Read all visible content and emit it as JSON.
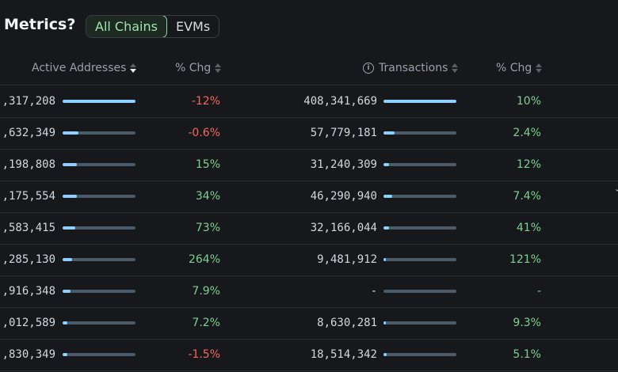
{
  "header": {
    "title": "y Metrics?",
    "tabs": [
      {
        "label": "All Chains",
        "active": true
      },
      {
        "label": "EVMs",
        "active": false
      }
    ]
  },
  "columns": {
    "active_addresses": "Active Addresses",
    "pct_chg_1": "% Chg",
    "transactions": "Transactions",
    "pct_chg_2": "% Chg"
  },
  "colors": {
    "positive": "#7fd08e",
    "negative": "#f2685c",
    "bar_fill": "#8fd0ff",
    "bar_track": "#4a5a68"
  },
  "rows": [
    {
      "addresses": ",317,208",
      "addr_share": 1.0,
      "addr_chg": "-12%",
      "addr_dir": "neg",
      "tx": "408,341,669",
      "tx_share": 1.0,
      "tx_chg": "10%",
      "tx_dir": "pos"
    },
    {
      "addresses": ",632,349",
      "addr_share": 0.22,
      "addr_chg": "-0.6%",
      "addr_dir": "neg",
      "tx": "57,779,181",
      "tx_share": 0.15,
      "tx_chg": "2.4%",
      "tx_dir": "pos"
    },
    {
      "addresses": ",198,808",
      "addr_share": 0.2,
      "addr_chg": "15%",
      "addr_dir": "pos",
      "tx": "31,240,309",
      "tx_share": 0.08,
      "tx_chg": "12%",
      "tx_dir": "pos"
    },
    {
      "addresses": ",175,554",
      "addr_share": 0.2,
      "addr_chg": "34%",
      "addr_dir": "pos",
      "tx": "46,290,940",
      "tx_share": 0.12,
      "tx_chg": "7.4%",
      "tx_dir": "pos"
    },
    {
      "addresses": ",583,415",
      "addr_share": 0.17,
      "addr_chg": "73%",
      "addr_dir": "pos",
      "tx": "32,166,044",
      "tx_share": 0.08,
      "tx_chg": "41%",
      "tx_dir": "pos"
    },
    {
      "addresses": ",285,130",
      "addr_share": 0.13,
      "addr_chg": "264%",
      "addr_dir": "pos",
      "tx": "9,481,912",
      "tx_share": 0.02,
      "tx_chg": "121%",
      "tx_dir": "pos"
    },
    {
      "addresses": ",916,348",
      "addr_share": 0.11,
      "addr_chg": "7.9%",
      "addr_dir": "pos",
      "tx": "-",
      "tx_share": 0.0,
      "tx_chg": "-",
      "tx_dir": "neu"
    },
    {
      "addresses": ",012,589",
      "addr_share": 0.07,
      "addr_chg": "7.2%",
      "addr_dir": "pos",
      "tx": "8,630,281",
      "tx_share": 0.02,
      "tx_chg": "9.3%",
      "tx_dir": "pos"
    },
    {
      "addresses": ",830,349",
      "addr_share": 0.06,
      "addr_chg": "-1.5%",
      "addr_dir": "neg",
      "tx": "18,514,342",
      "tx_share": 0.04,
      "tx_chg": "5.1%",
      "tx_dir": "pos"
    }
  ]
}
